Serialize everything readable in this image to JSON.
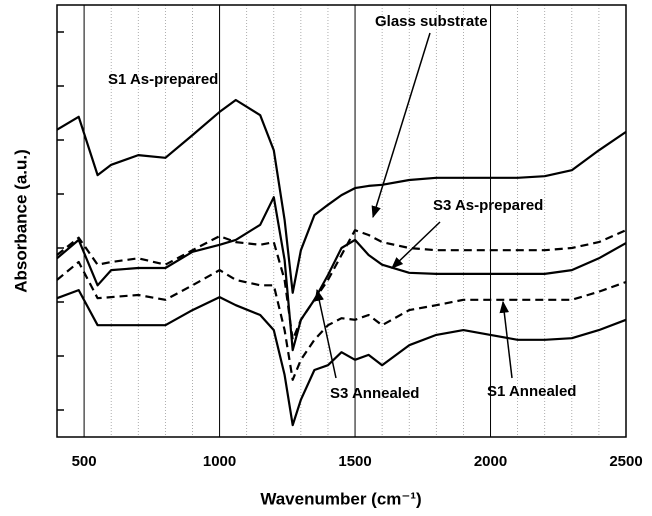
{
  "chart_data": {
    "type": "line",
    "x_label": "Wavenumber (cm⁻¹)",
    "y_label": "Absorbance (a.u.)",
    "xlim": [
      400,
      2500
    ],
    "xticks": [
      500,
      1000,
      1500,
      2000,
      2500
    ],
    "xminorticks": [
      600,
      700,
      800,
      900,
      1100,
      1200,
      1300,
      1400,
      1600,
      1700,
      1800,
      1900,
      2100,
      2200,
      2300,
      2400
    ],
    "ylim": [
      0,
      8
    ],
    "yticks": [
      0.5,
      1.5,
      2.5,
      3.5,
      4.5,
      5.5,
      6.5,
      7.5
    ],
    "grid": true,
    "x": [
      400,
      480,
      550,
      600,
      700,
      800,
      900,
      1000,
      1060,
      1150,
      1200,
      1240,
      1270,
      1300,
      1350,
      1400,
      1450,
      1500,
      1550,
      1600,
      1700,
      1800,
      1900,
      2000,
      2100,
      2200,
      2300,
      2400,
      2500
    ],
    "series": [
      {
        "name": "S1 As-prepared",
        "color": "#000000",
        "style": "solid",
        "values": [
          5.69,
          5.93,
          4.85,
          5.04,
          5.22,
          5.17,
          5.59,
          6.02,
          6.24,
          5.96,
          5.31,
          4.02,
          2.67,
          3.46,
          4.11,
          4.3,
          4.48,
          4.61,
          4.65,
          4.67,
          4.76,
          4.8,
          4.8,
          4.8,
          4.8,
          4.83,
          4.94,
          5.31,
          5.65
        ]
      },
      {
        "name": "Glass substrate",
        "color": "#000000",
        "style": "dashed",
        "values": [
          3.37,
          3.69,
          3.19,
          3.24,
          3.31,
          3.19,
          3.46,
          3.72,
          3.61,
          3.56,
          3.61,
          2.91,
          1.8,
          2.17,
          2.54,
          2.91,
          3.37,
          3.83,
          3.74,
          3.61,
          3.5,
          3.46,
          3.46,
          3.46,
          3.46,
          3.46,
          3.5,
          3.61,
          3.83
        ]
      },
      {
        "name": "S3 As-prepared",
        "color": "#000000",
        "style": "solid",
        "values": [
          3.31,
          3.65,
          2.81,
          3.09,
          3.13,
          3.13,
          3.43,
          3.56,
          3.65,
          3.93,
          4.44,
          3.28,
          1.61,
          2.17,
          2.54,
          3.0,
          3.5,
          3.65,
          3.37,
          3.19,
          3.04,
          3.02,
          3.02,
          3.02,
          3.02,
          3.02,
          3.09,
          3.31,
          3.59
        ]
      },
      {
        "name": "S3 Annealed",
        "color": "#000000",
        "style": "solid",
        "values": [
          2.57,
          2.72,
          2.07,
          2.07,
          2.07,
          2.07,
          2.35,
          2.59,
          2.44,
          2.26,
          1.98,
          1.15,
          0.22,
          0.69,
          1.24,
          1.33,
          1.57,
          1.43,
          1.52,
          1.33,
          1.7,
          1.89,
          1.98,
          1.89,
          1.8,
          1.8,
          1.83,
          1.98,
          2.17
        ]
      },
      {
        "name": "S1 Annealed",
        "color": "#000000",
        "style": "dashed",
        "values": [
          2.91,
          3.24,
          2.57,
          2.59,
          2.63,
          2.54,
          2.81,
          3.09,
          2.91,
          2.81,
          2.81,
          1.98,
          1.06,
          1.43,
          1.8,
          2.07,
          2.2,
          2.17,
          2.26,
          2.07,
          2.35,
          2.44,
          2.54,
          2.54,
          2.54,
          2.54,
          2.54,
          2.69,
          2.87
        ]
      }
    ]
  }
}
